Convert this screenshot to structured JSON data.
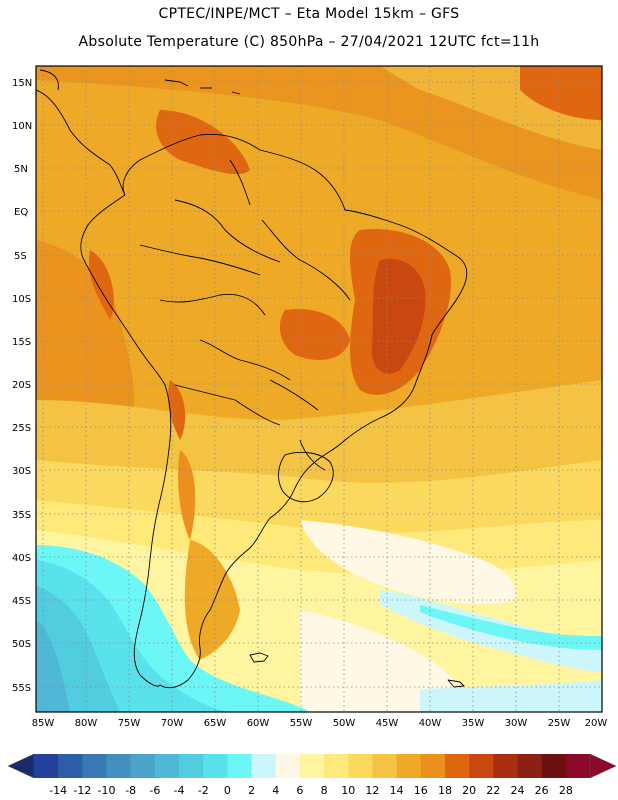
{
  "header": {
    "line1": "CPTEC/INPE/MCT –  Eta Model 15km – GFS",
    "line2": "Absolute Temperature (C) 850hPa – 27/04/2021 12UTC fct=11h"
  },
  "map": {
    "lat_labels": [
      "15N",
      "10N",
      "5N",
      "EQ",
      "5S",
      "10S",
      "15S",
      "20S",
      "25S",
      "30S",
      "35S",
      "40S",
      "45S",
      "50S",
      "55S"
    ],
    "lon_labels": [
      "85W",
      "80W",
      "75W",
      "70W",
      "65W",
      "60W",
      "55W",
      "50W",
      "45W",
      "40W",
      "35W",
      "30W",
      "25W",
      "20W"
    ]
  },
  "colorbar": {
    "labels": [
      "-14",
      "-12",
      "-10",
      "-8",
      "-6",
      "-4",
      "-2",
      "0",
      "2",
      "4",
      "6",
      "8",
      "10",
      "12",
      "14",
      "16",
      "18",
      "20",
      "22",
      "24",
      "26",
      "28"
    ],
    "colors": [
      "#24409a",
      "#2e5ea8",
      "#3a79b6",
      "#4390c0",
      "#4aa3c8",
      "#4fb8d6",
      "#52ccdf",
      "#5ae2ec",
      "#6cf6f6",
      "#cdf6fb",
      "#fff8e4",
      "#fff5a0",
      "#ffe97a",
      "#fbd95e",
      "#f4c344",
      "#eeaa26",
      "#e9901e",
      "#df6712",
      "#c94810",
      "#a83010",
      "#8c2012",
      "#6e1010",
      "#8b0a2a"
    ],
    "under_color": "#1c2a6c",
    "over_color": "#8b0a2a"
  }
}
